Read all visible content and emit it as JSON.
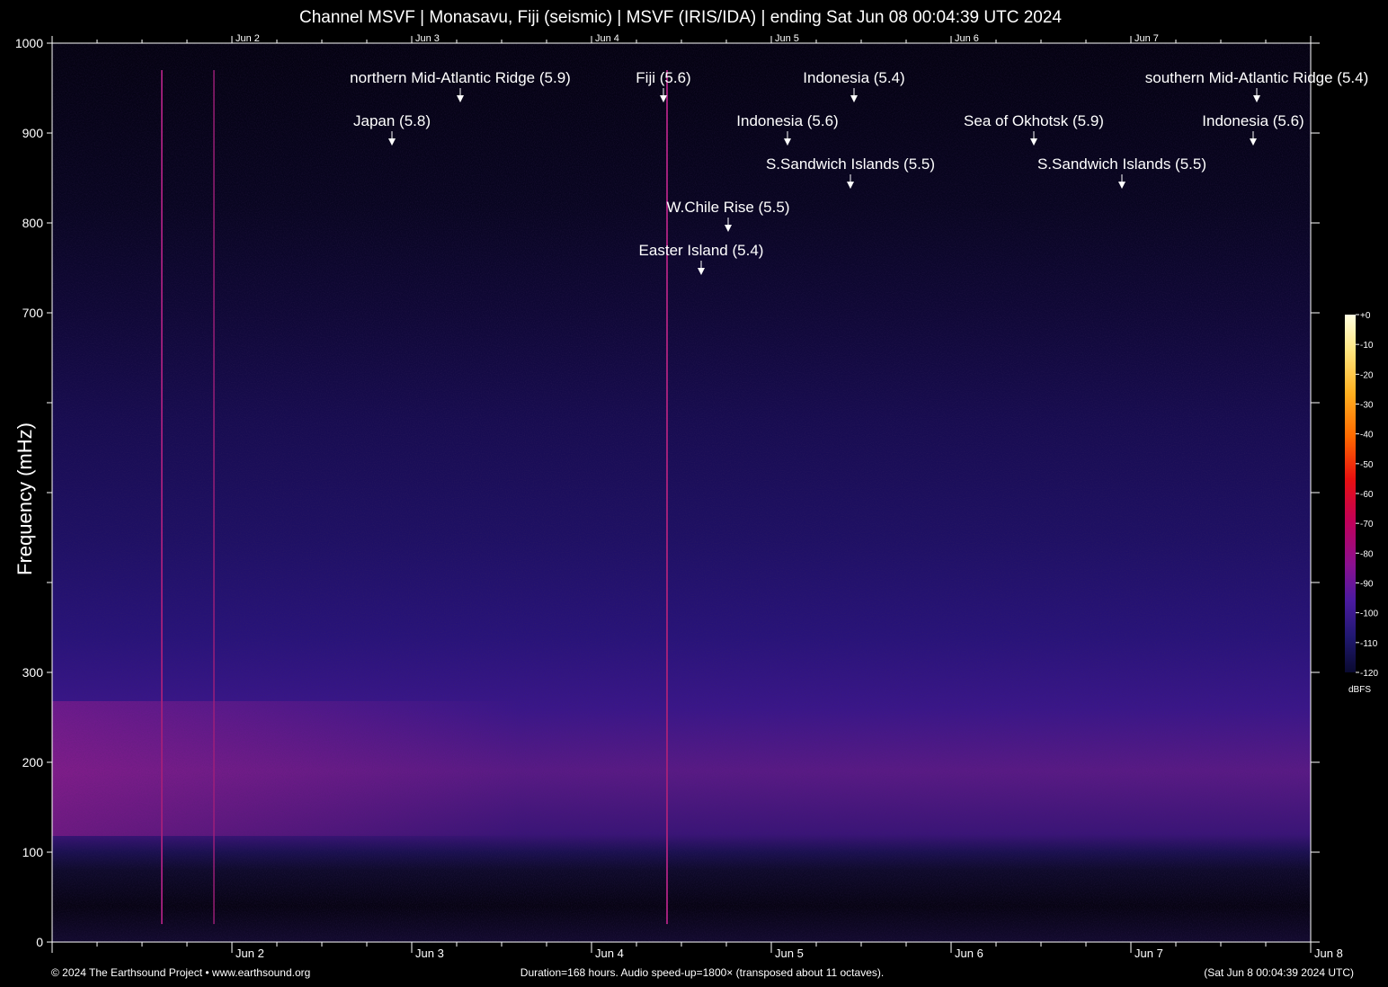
{
  "title": "Channel MSVF | Monasavu, Fiji (seismic) | MSVF (IRIS/IDA) | ending Sat Jun 08 00:04:39 UTC 2024",
  "footer": {
    "left": "© 2024 The Earthsound Project • www.earthsound.org",
    "center": "Duration=168 hours. Audio speed-up=1800× (transposed about 11 octaves).",
    "right": "(Sat Jun  8 00:04:39 2024 UTC)"
  },
  "colors": {
    "background": "#000000",
    "axis": "#ffffff",
    "noise_floor": "#0a0620",
    "band_peak": "#7a1590",
    "event_line": "#a0207a"
  },
  "chart_data": {
    "type": "heatmap",
    "title": "Channel MSVF | Monasavu, Fiji (seismic) | MSVF (IRIS/IDA) | ending Sat Jun 08 00:04:39 UTC 2024",
    "xlabel": "",
    "ylabel": "Frequency (mHz)",
    "x_unit": "days",
    "xlim": [
      -7,
      0
    ],
    "ylim": [
      0,
      1000
    ],
    "y_ticks": [
      0,
      100,
      200,
      300,
      400,
      500,
      600,
      700,
      800,
      900,
      1000
    ],
    "y_tick_labels": [
      "0",
      "100",
      "200",
      "300",
      "",
      "",
      "",
      "700",
      "800",
      "900",
      "1000"
    ],
    "x_ticks": [
      {
        "label": "Jun 2",
        "x": -6
      },
      {
        "label": "Jun 3",
        "x": -5
      },
      {
        "label": "Jun 4",
        "x": -4
      },
      {
        "label": "Jun 5",
        "x": -3
      },
      {
        "label": "Jun 6",
        "x": -2
      },
      {
        "label": "Jun 7",
        "x": -1
      },
      {
        "label": "Jun 8",
        "x": 0
      }
    ],
    "background_profile": {
      "frequency_mHz": [
        0,
        50,
        100,
        140,
        200,
        260,
        350,
        450,
        600,
        750,
        1000
      ],
      "dBFS": [
        -110,
        -120,
        -116,
        -96,
        -92,
        -98,
        -103,
        -106,
        -110,
        -116,
        -120
      ]
    },
    "event_lines": [
      {
        "x": -6.39,
        "peak_dBFS": -82
      },
      {
        "x": -6.1,
        "peak_dBFS": -92
      },
      {
        "x": -3.58,
        "peak_dBFS": -80
      }
    ],
    "annotations": [
      {
        "text": "northern Mid-Atlantic Ridge (5.9)",
        "x": -4.73,
        "row": 0
      },
      {
        "text": "Fiji (5.6)",
        "x": -3.6,
        "row": 0
      },
      {
        "text": "Indonesia (5.4)",
        "x": -2.54,
        "row": 0
      },
      {
        "text": "southern Mid-Atlantic Ridge (5.4)",
        "x": -0.3,
        "row": 0
      },
      {
        "text": "Japan (5.8)",
        "x": -5.11,
        "row": 1
      },
      {
        "text": "Indonesia (5.6)",
        "x": -2.91,
        "row": 1
      },
      {
        "text": "Sea of Okhotsk (5.9)",
        "x": -1.54,
        "row": 1
      },
      {
        "text": "Indonesia (5.6)",
        "x": -0.32,
        "row": 1
      },
      {
        "text": "S.Sandwich Islands (5.5)",
        "x": -2.56,
        "row": 2
      },
      {
        "text": "S.Sandwich Islands (5.5)",
        "x": -1.05,
        "row": 2
      },
      {
        "text": "W.Chile Rise (5.5)",
        "x": -3.24,
        "row": 3
      },
      {
        "text": "Easter Island (5.4)",
        "x": -3.39,
        "row": 4
      }
    ],
    "colorbar": {
      "unit": "dBFS",
      "range": [
        -120,
        0
      ],
      "ticks": [
        "+0",
        "-10",
        "-20",
        "-30",
        "-40",
        "-50",
        "-60",
        "-70",
        "-80",
        "-90",
        "-100",
        "-110",
        "-120"
      ],
      "stops": [
        "#ffffe0",
        "#ffe680",
        "#ffb020",
        "#ff6a00",
        "#e81010",
        "#c0005a",
        "#8a1090",
        "#4a1aa0",
        "#201870",
        "#0a0a30"
      ]
    }
  }
}
